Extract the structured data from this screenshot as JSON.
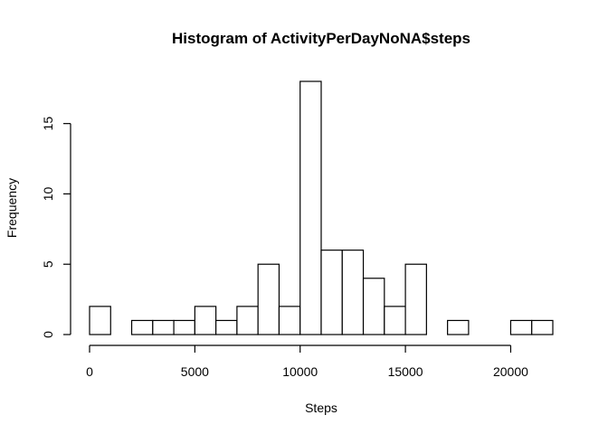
{
  "chart_data": {
    "type": "bar",
    "subtype": "histogram",
    "title": "Histogram of ActivityPerDayNoNA$steps",
    "xlabel": "Steps",
    "ylabel": "Frequency",
    "bin_width": 1000,
    "bin_edges": [
      0,
      1000,
      2000,
      3000,
      4000,
      5000,
      6000,
      7000,
      8000,
      9000,
      10000,
      11000,
      12000,
      13000,
      14000,
      15000,
      16000,
      17000,
      18000,
      19000,
      20000,
      21000,
      22000
    ],
    "values": [
      2,
      0,
      1,
      1,
      1,
      2,
      1,
      2,
      5,
      2,
      18,
      6,
      6,
      4,
      2,
      5,
      0,
      1,
      0,
      0,
      1,
      1
    ],
    "xlim": [
      0,
      22000
    ],
    "ylim": [
      0,
      18
    ],
    "x_ticks": [
      0,
      5000,
      10000,
      15000,
      20000
    ],
    "x_tick_labels": [
      "0",
      "5000",
      "10000",
      "15000",
      "20000"
    ],
    "y_ticks": [
      0,
      5,
      10,
      15
    ],
    "y_tick_labels": [
      "0",
      "5",
      "10",
      "15"
    ],
    "bar_fill": "#ffffff",
    "bar_stroke": "#000000",
    "grid": false,
    "legend": "none"
  }
}
